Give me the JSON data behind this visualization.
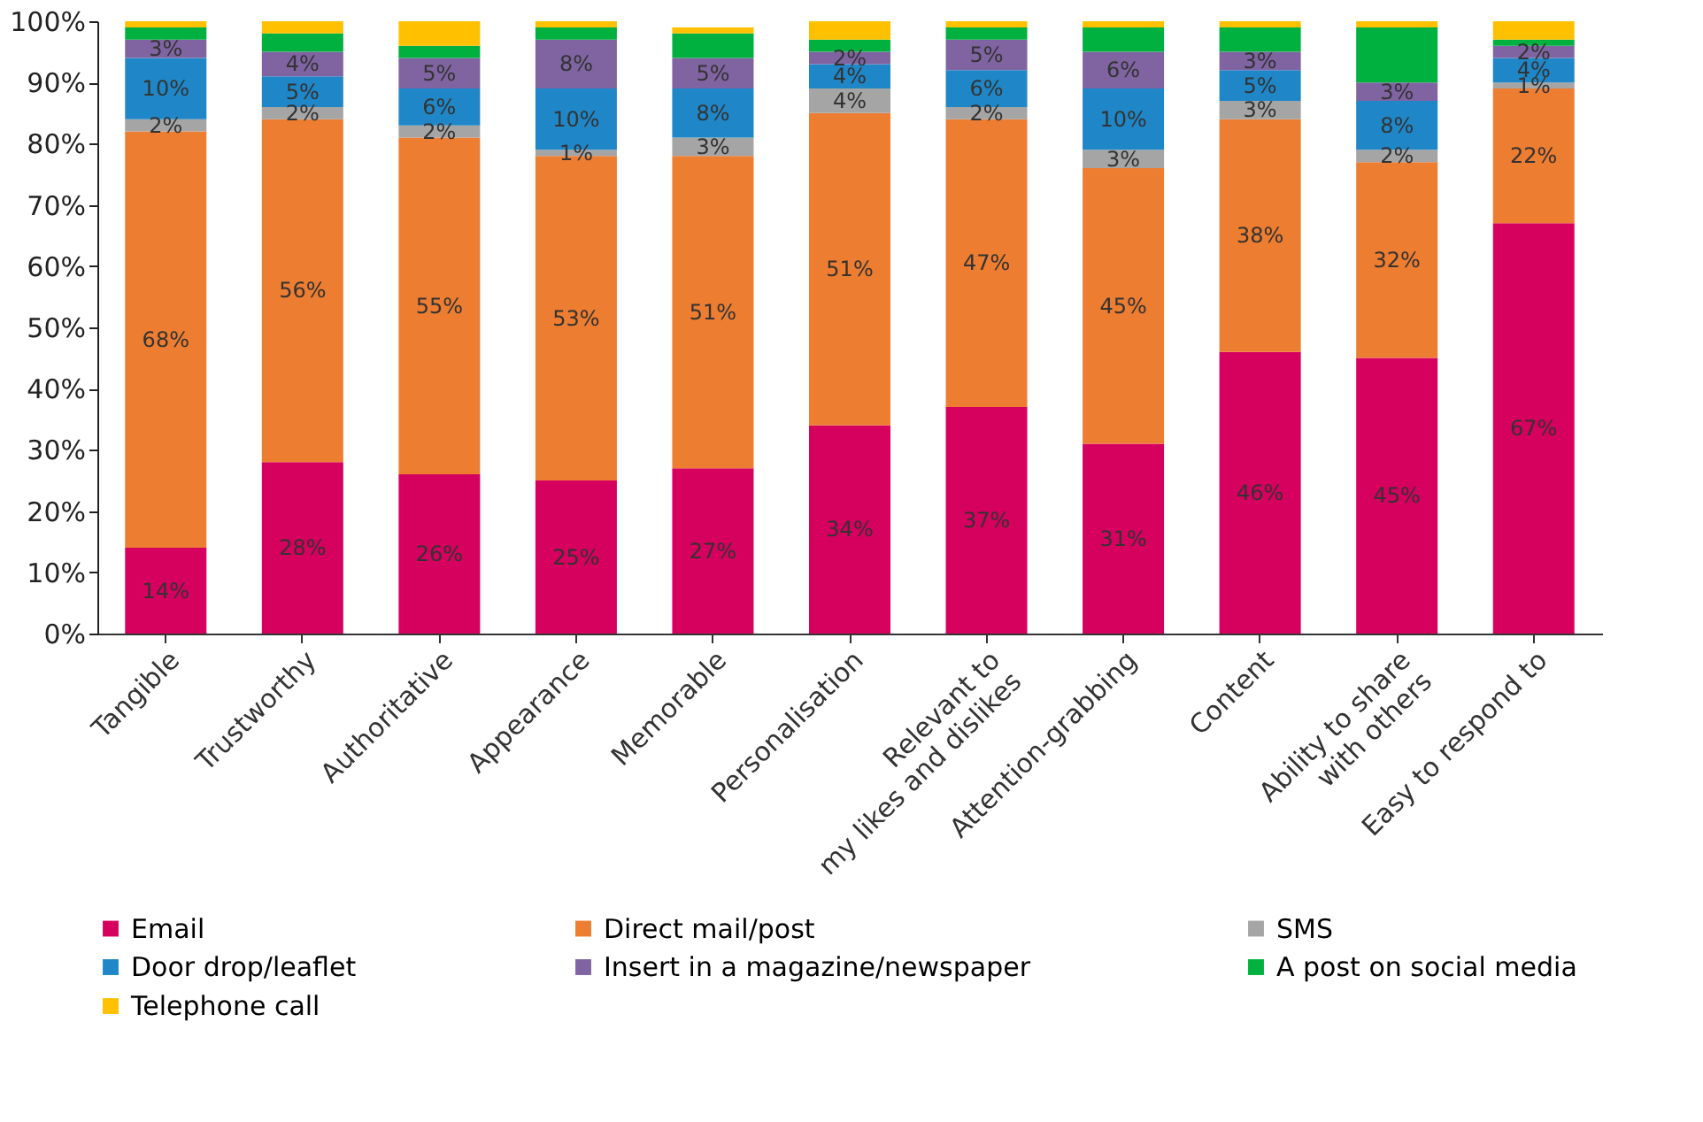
{
  "chart_data": {
    "type": "bar",
    "stacked": true,
    "categories": [
      "Tangible",
      "Trustworthy",
      "Authoritative",
      "Appearance",
      "Memorable",
      "Personalisation",
      "Relevant to\nmy likes and dislikes",
      "Attention-grabbing",
      "Content",
      "Ability to share\nwith others",
      "Easy to respond to"
    ],
    "series": [
      {
        "name": "Email",
        "color": "#d6005f",
        "values": [
          14,
          28,
          26,
          25,
          27,
          34,
          37,
          31,
          46,
          45,
          67
        ],
        "value_labels": [
          "14%",
          "28%",
          "26%",
          "25%",
          "27%",
          "34%",
          "37%",
          "31%",
          "46%",
          "45%",
          "67%"
        ]
      },
      {
        "name": "Direct mail/post",
        "color": "#ed7d31",
        "values": [
          68,
          56,
          55,
          53,
          51,
          51,
          47,
          45,
          38,
          32,
          22
        ],
        "value_labels": [
          "68%",
          "56%",
          "55%",
          "53%",
          "51%",
          "51%",
          "47%",
          "45%",
          "38%",
          "32%",
          "22%"
        ]
      },
      {
        "name": "SMS",
        "color": "#a5a5a5",
        "values": [
          2,
          2,
          2,
          1,
          3,
          4,
          2,
          3,
          3,
          2,
          1
        ],
        "value_labels": [
          "2%",
          "2%",
          "2%",
          "1%",
          "3%",
          "4%",
          "2%",
          "3%",
          "3%",
          "2%",
          "1%"
        ]
      },
      {
        "name": "Door drop/leaflet",
        "color": "#1f87c8",
        "values": [
          10,
          5,
          6,
          10,
          8,
          4,
          6,
          10,
          5,
          8,
          4
        ],
        "value_labels": [
          "10%",
          "5%",
          "6%",
          "10%",
          "8%",
          "4%",
          "6%",
          "10%",
          "5%",
          "8%",
          "4%"
        ]
      },
      {
        "name": "Insert in a magazine/newspaper",
        "color": "#8064a2",
        "values": [
          3,
          4,
          5,
          8,
          5,
          2,
          5,
          6,
          3,
          3,
          2
        ],
        "value_labels": [
          "3%",
          "4%",
          "5%",
          "8%",
          "5%",
          "2%",
          "5%",
          "6%",
          "3%",
          "3%",
          "2%"
        ]
      },
      {
        "name": "A post on social media",
        "color": "#00b140",
        "values": [
          2,
          3,
          2,
          2,
          4,
          2,
          2,
          4,
          4,
          9,
          1
        ],
        "value_labels": [
          null,
          null,
          null,
          null,
          null,
          null,
          null,
          null,
          null,
          null,
          null
        ]
      },
      {
        "name": "Telephone call",
        "color": "#ffc000",
        "values": [
          1,
          2,
          4,
          1,
          1,
          3,
          1,
          1,
          1,
          1,
          3
        ],
        "value_labels": [
          null,
          null,
          null,
          null,
          null,
          null,
          null,
          null,
          null,
          null,
          null
        ]
      }
    ],
    "ylim": [
      0,
      100
    ],
    "yticks": [
      {
        "value": 0,
        "label": "0%"
      },
      {
        "value": 10,
        "label": "10%"
      },
      {
        "value": 20,
        "label": "20%"
      },
      {
        "value": 30,
        "label": "30%"
      },
      {
        "value": 40,
        "label": "40%"
      },
      {
        "value": 50,
        "label": "50%"
      },
      {
        "value": 60,
        "label": "60%"
      },
      {
        "value": 70,
        "label": "70%"
      },
      {
        "value": 80,
        "label": "80%"
      },
      {
        "value": 90,
        "label": "90%"
      },
      {
        "value": 100,
        "label": "100%"
      }
    ],
    "grid": false,
    "legend": "bottom"
  }
}
